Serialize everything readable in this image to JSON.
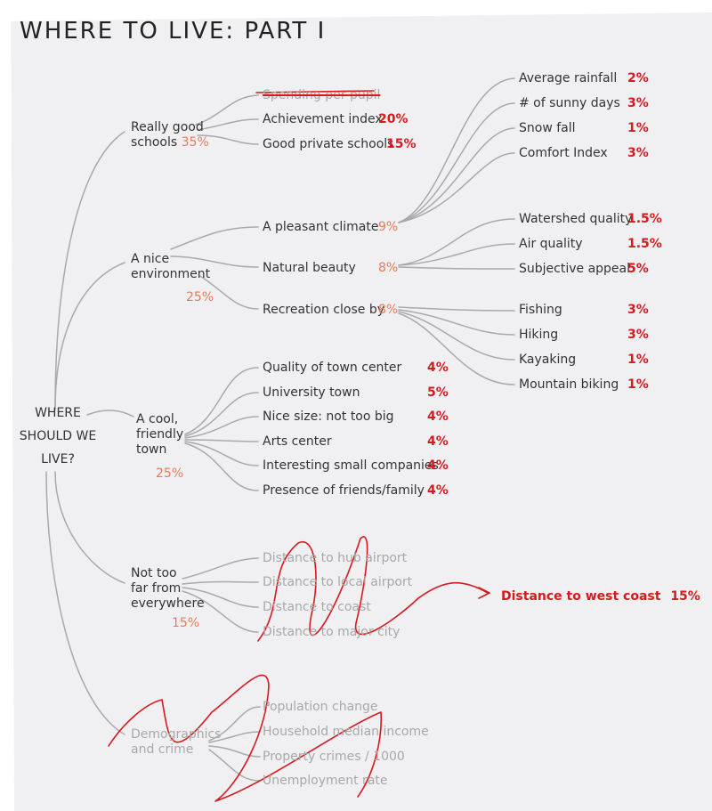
{
  "title": "WHERE TO LIVE: PART I",
  "root": [
    "WHERE",
    "SHOULD WE",
    "LIVE?"
  ],
  "colors": {
    "weight_red": "#d8191e",
    "weight_orange": "#e77a58",
    "line": "#a8a8a8",
    "strike": "#d8191e"
  },
  "categories": [
    {
      "label": [
        "Really good",
        "schools"
      ],
      "weight": "35%",
      "items": [
        {
          "label": "Spending per pupil",
          "struck": true
        },
        {
          "label": "Achievement index",
          "weight": "20%"
        },
        {
          "label": "Good private schools",
          "weight": "15%"
        }
      ]
    },
    {
      "label": [
        "A nice",
        "environment"
      ],
      "weight": "25%",
      "items": [
        {
          "label": "A pleasant climate",
          "weight": "9%",
          "children": [
            {
              "label": "Average rainfall",
              "weight": "2%"
            },
            {
              "label": "# of sunny days",
              "weight": "3%"
            },
            {
              "label": "Snow fall",
              "weight": "1%"
            },
            {
              "label": "Comfort Index",
              "weight": "3%"
            }
          ]
        },
        {
          "label": "Natural beauty",
          "weight": "8%",
          "children": [
            {
              "label": "Watershed quality",
              "weight": "1.5%"
            },
            {
              "label": "Air quality",
              "weight": "1.5%"
            },
            {
              "label": "Subjective appeal",
              "weight": "5%"
            }
          ]
        },
        {
          "label": "Recreation close by",
          "weight": "8%",
          "children": [
            {
              "label": "Fishing",
              "weight": "3%"
            },
            {
              "label": "Hiking",
              "weight": "3%"
            },
            {
              "label": "Kayaking",
              "weight": "1%"
            },
            {
              "label": "Mountain biking",
              "weight": "1%"
            }
          ]
        }
      ]
    },
    {
      "label": [
        "A cool,",
        "friendly",
        "town"
      ],
      "weight": "25%",
      "items": [
        {
          "label": "Quality of town center",
          "weight": "4%"
        },
        {
          "label": "University town",
          "weight": "5%"
        },
        {
          "label": "Nice size: not too big",
          "weight": "4%"
        },
        {
          "label": "Arts center",
          "weight": "4%"
        },
        {
          "label": "Interesting small companies",
          "weight": "4%"
        },
        {
          "label": "Presence of friends/family",
          "weight": "4%"
        }
      ]
    },
    {
      "label": [
        "Not too",
        "far from",
        "everywhere"
      ],
      "weight": "15%",
      "items": [
        {
          "label": "Distance to hub airport",
          "crossed": true
        },
        {
          "label": "Distance to local airport",
          "crossed": true
        },
        {
          "label": "Distance to coast",
          "crossed": true
        },
        {
          "label": "Distance to major city",
          "crossed": true
        }
      ],
      "replacement": {
        "label": "Distance to west coast",
        "weight": "15%"
      }
    },
    {
      "label": [
        "Demographics",
        "and crime"
      ],
      "crossed": true,
      "items": [
        {
          "label": "Population change",
          "crossed": true
        },
        {
          "label": "Household median income",
          "crossed": true
        },
        {
          "label": "Property crimes / 1000",
          "crossed": true
        },
        {
          "label": "Unemployment rate",
          "crossed": true
        }
      ]
    }
  ]
}
